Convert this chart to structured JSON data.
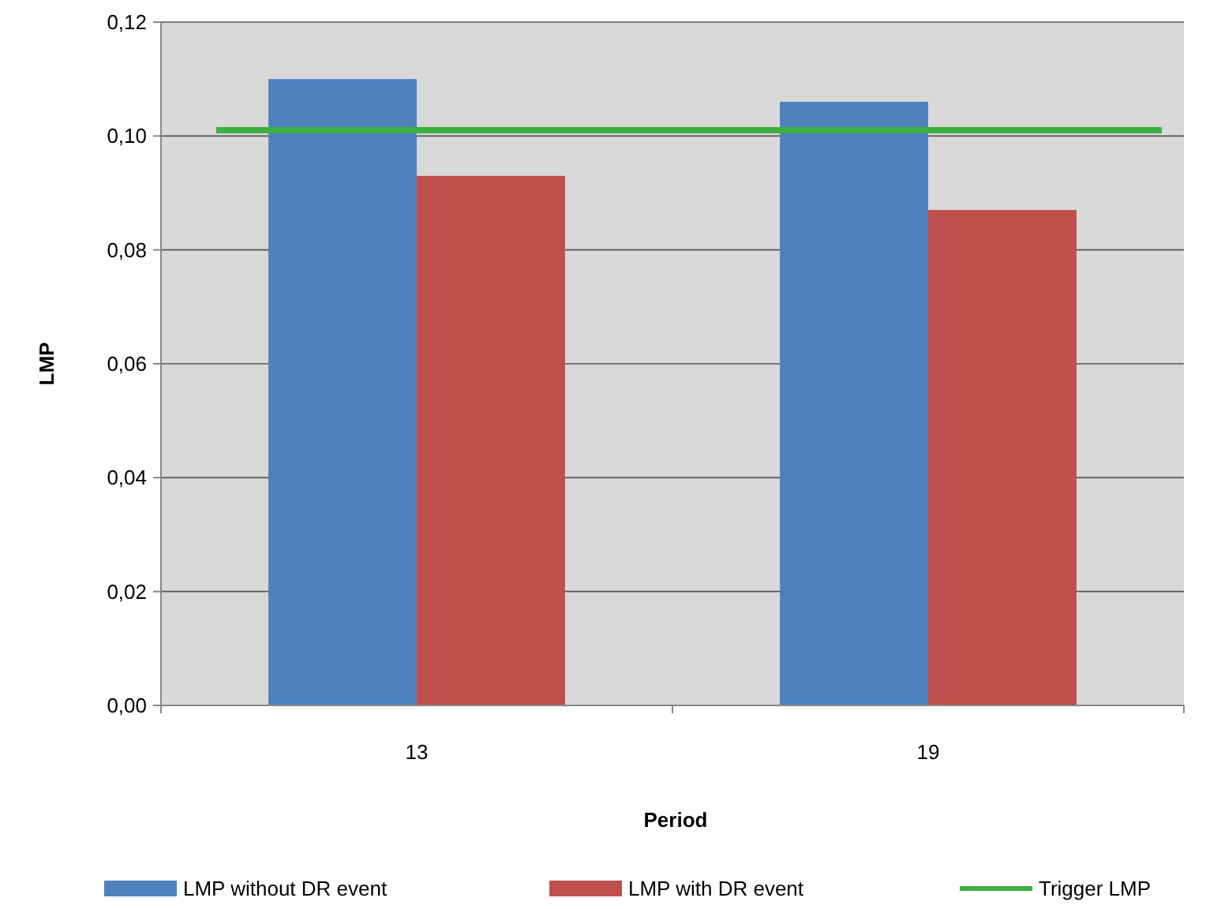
{
  "chart_data": {
    "type": "bar",
    "xlabel": "Period",
    "ylabel": "LMP",
    "categories": [
      "13",
      "19"
    ],
    "series": [
      {
        "name": "LMP without DR event",
        "color": "#4f81bd",
        "values": [
          0.11,
          0.106
        ]
      },
      {
        "name": "LMP with DR event",
        "color": "#c0504d",
        "values": [
          0.093,
          0.087
        ]
      }
    ],
    "ylim": [
      0,
      0.12
    ],
    "yticks": [
      {
        "value": 0,
        "label": "0,00"
      },
      {
        "value": 0.02,
        "label": "0,02"
      },
      {
        "value": 0.04,
        "label": "0,04"
      },
      {
        "value": 0.06,
        "label": "0,06"
      },
      {
        "value": 0.08,
        "label": "0,08"
      },
      {
        "value": 0.1,
        "label": "0,10"
      },
      {
        "value": 0.12,
        "label": "0,12"
      }
    ],
    "ref_lines": [
      {
        "axis": "y",
        "value": 0.101,
        "label": "Trigger LMP",
        "color": "#3cb043"
      }
    ],
    "grid": "y",
    "legend": "bottom"
  }
}
